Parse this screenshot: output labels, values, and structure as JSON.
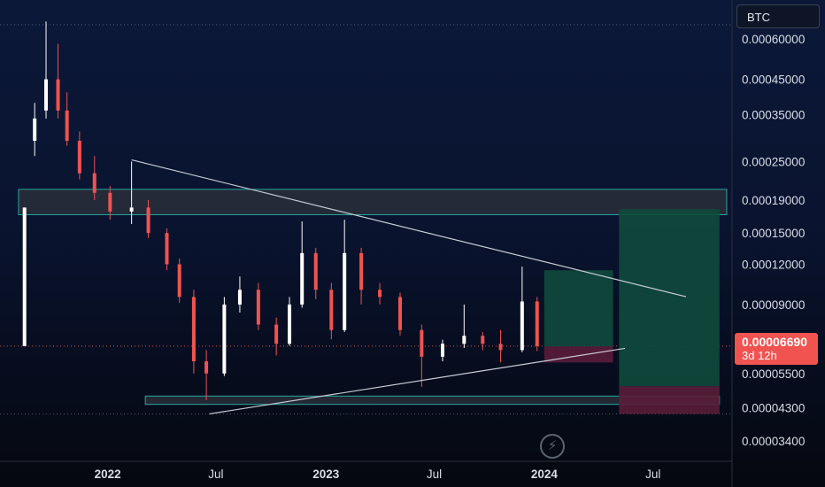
{
  "symbol": "BTC",
  "watermark_icon": "lightning-icon",
  "current_price": {
    "value": "0.00006690",
    "countdown": "3d 12h",
    "color": "#f05350"
  },
  "colors": {
    "up": "#ffffff",
    "down": "#f05350",
    "zone_border": "#26a69a",
    "zone_fill": "#2a2e39",
    "profit": "#0f4a3c",
    "loss": "#5a1d3a",
    "trendline": "#c8ccd6"
  },
  "chart_data": {
    "type": "candlestick",
    "title": "",
    "y_scale": "log",
    "y_ticks": [
      "0.00060000",
      "0.00045000",
      "0.00035000",
      "0.00025000",
      "0.00019000",
      "0.00015000",
      "0.00012000",
      "0.00009000",
      "0.00005500",
      "0.00004300",
      "0.00003400"
    ],
    "y_tick_values": [
      0.0006,
      0.00045,
      0.00035,
      0.00025,
      0.00019,
      0.00015,
      0.00012,
      9e-05,
      5.5e-05,
      4.3e-05,
      3.4e-05
    ],
    "x_ticks": [
      {
        "label": "2022",
        "date": "2022-01-01",
        "bold": true
      },
      {
        "label": "Jul",
        "date": "2022-07-01",
        "bold": false
      },
      {
        "label": "2023",
        "date": "2023-01-01",
        "bold": true
      },
      {
        "label": "Jul",
        "date": "2023-07-01",
        "bold": false
      },
      {
        "label": "2024",
        "date": "2024-01-01",
        "bold": true
      },
      {
        "label": "Jul",
        "date": "2024-07-01",
        "bold": false
      }
    ],
    "x_range": [
      "2021-07-05",
      "2024-11-10"
    ],
    "y_range": [
      2.936e-05,
      0.000793
    ],
    "candles": [
      {
        "d": "2021-08-15",
        "o": 6.69e-05,
        "h": 0.00018,
        "l": 6.69e-05,
        "c": 0.00018
      },
      {
        "d": "2021-09-01",
        "o": 0.00029,
        "h": 0.00038,
        "l": 0.00026,
        "c": 0.00034
      },
      {
        "d": "2021-09-20",
        "o": 0.00036,
        "h": 0.00068,
        "l": 0.00034,
        "c": 0.00045
      },
      {
        "d": "2021-10-10",
        "o": 0.00045,
        "h": 0.00058,
        "l": 0.00034,
        "c": 0.00036
      },
      {
        "d": "2021-10-25",
        "o": 0.00036,
        "h": 0.00041,
        "l": 0.00028,
        "c": 0.00029
      },
      {
        "d": "2021-11-15",
        "o": 0.00029,
        "h": 0.00031,
        "l": 0.00022,
        "c": 0.00023
      },
      {
        "d": "2021-12-10",
        "o": 0.00023,
        "h": 0.00026,
        "l": 0.00019,
        "c": 0.0002
      },
      {
        "d": "2022-01-05",
        "o": 0.0002,
        "h": 0.00021,
        "l": 0.000165,
        "c": 0.000175
      },
      {
        "d": "2022-02-10",
        "o": 0.000175,
        "h": 0.00025,
        "l": 0.00016,
        "c": 0.00018
      },
      {
        "d": "2022-03-10",
        "o": 0.00018,
        "h": 0.00019,
        "l": 0.000145,
        "c": 0.00015
      },
      {
        "d": "2022-04-10",
        "o": 0.00015,
        "h": 0.000155,
        "l": 0.000115,
        "c": 0.00012
      },
      {
        "d": "2022-05-01",
        "o": 0.00012,
        "h": 0.000125,
        "l": 9.12e-05,
        "c": 9.5e-05
      },
      {
        "d": "2022-05-25",
        "o": 9.5e-05,
        "h": 0.0001,
        "l": 5.5e-05,
        "c": 6e-05
      },
      {
        "d": "2022-06-15",
        "o": 6e-05,
        "h": 6.5e-05,
        "l": 4.55e-05,
        "c": 5.5e-05
      },
      {
        "d": "2022-07-15",
        "o": 5.5e-05,
        "h": 9.5e-05,
        "l": 5.4e-05,
        "c": 9e-05
      },
      {
        "d": "2022-08-10",
        "o": 9e-05,
        "h": 0.00011,
        "l": 8.5e-05,
        "c": 0.0001
      },
      {
        "d": "2022-09-10",
        "o": 0.0001,
        "h": 0.000105,
        "l": 7.5e-05,
        "c": 7.8e-05
      },
      {
        "d": "2022-10-10",
        "o": 7.8e-05,
        "h": 8.2e-05,
        "l": 6.25e-05,
        "c": 6.8e-05
      },
      {
        "d": "2022-11-01",
        "o": 6.8e-05,
        "h": 9.5e-05,
        "l": 6.7e-05,
        "c": 9e-05
      },
      {
        "d": "2022-11-22",
        "o": 9e-05,
        "h": 0.000163,
        "l": 8.8e-05,
        "c": 0.00013
      },
      {
        "d": "2022-12-15",
        "o": 0.00013,
        "h": 0.000135,
        "l": 9.35e-05,
        "c": 0.0001
      },
      {
        "d": "2023-01-10",
        "o": 0.0001,
        "h": 0.000105,
        "l": 7.02e-05,
        "c": 7.5e-05
      },
      {
        "d": "2023-02-01",
        "o": 7.5e-05,
        "h": 0.000165,
        "l": 7.4e-05,
        "c": 0.00013
      },
      {
        "d": "2023-03-01",
        "o": 0.00013,
        "h": 0.000135,
        "l": 9e-05,
        "c": 0.0001
      },
      {
        "d": "2023-04-01",
        "o": 0.0001,
        "h": 0.000105,
        "l": 9e-05,
        "c": 9.5e-05
      },
      {
        "d": "2023-05-05",
        "o": 9.5e-05,
        "h": 9.8e-05,
        "l": 7.22e-05,
        "c": 7.5e-05
      },
      {
        "d": "2023-06-10",
        "o": 7.5e-05,
        "h": 7.8e-05,
        "l": 5e-05,
        "c": 6.2e-05
      },
      {
        "d": "2023-07-15",
        "o": 6.2e-05,
        "h": 7e-05,
        "l": 6e-05,
        "c": 6.8e-05
      },
      {
        "d": "2023-08-20",
        "o": 6.8e-05,
        "h": 9e-05,
        "l": 6.6e-05,
        "c": 7.2e-05
      },
      {
        "d": "2023-09-20",
        "o": 7.2e-05,
        "h": 7.4e-05,
        "l": 6.5e-05,
        "c": 6.8e-05
      },
      {
        "d": "2023-10-20",
        "o": 6.8e-05,
        "h": 7.5e-05,
        "l": 5.95e-05,
        "c": 6.5e-05
      },
      {
        "d": "2023-11-25",
        "o": 6.5e-05,
        "h": 0.000118,
        "l": 6.4e-05,
        "c": 9.2e-05
      },
      {
        "d": "2023-12-20",
        "o": 9.2e-05,
        "h": 9.5e-05,
        "l": 6.45e-05,
        "c": 6.69e-05
      }
    ],
    "zones": [
      {
        "name": "resistance-zone",
        "from": "2021-08-05",
        "to": "2024-11-01",
        "top": 0.000205,
        "bottom": 0.000171
      },
      {
        "name": "support-zone",
        "from": "2022-03-05",
        "to": "2024-10-20",
        "top": 4.68e-05,
        "bottom": 4.41e-05
      }
    ],
    "trendlines": [
      {
        "name": "descending-trendline",
        "from": {
          "d": "2022-02-10",
          "p": 0.000253
        },
        "to": {
          "d": "2024-08-25",
          "p": 9.52e-05
        }
      },
      {
        "name": "ascending-trendline",
        "from": {
          "d": "2022-06-20",
          "p": 4.12e-05
        },
        "to": {
          "d": "2024-05-15",
          "p": 6.58e-05
        }
      }
    ],
    "positions": [
      {
        "name": "long-position-1",
        "from": "2024-01-01",
        "to": "2024-04-25",
        "entry": 6.67e-05,
        "target": 0.000115,
        "stop": 5.95e-05
      },
      {
        "name": "long-position-2",
        "from": "2024-05-05",
        "to": "2024-10-20",
        "entry": 5.02e-05,
        "target": 0.000178,
        "stop": 4.12e-05
      }
    ],
    "guides": [
      {
        "name": "top-dotted-line",
        "price": 0.000665
      },
      {
        "name": "current-price-line",
        "price": 6.69e-05
      },
      {
        "name": "low-dotted-line",
        "price": 4.12e-05
      }
    ]
  }
}
